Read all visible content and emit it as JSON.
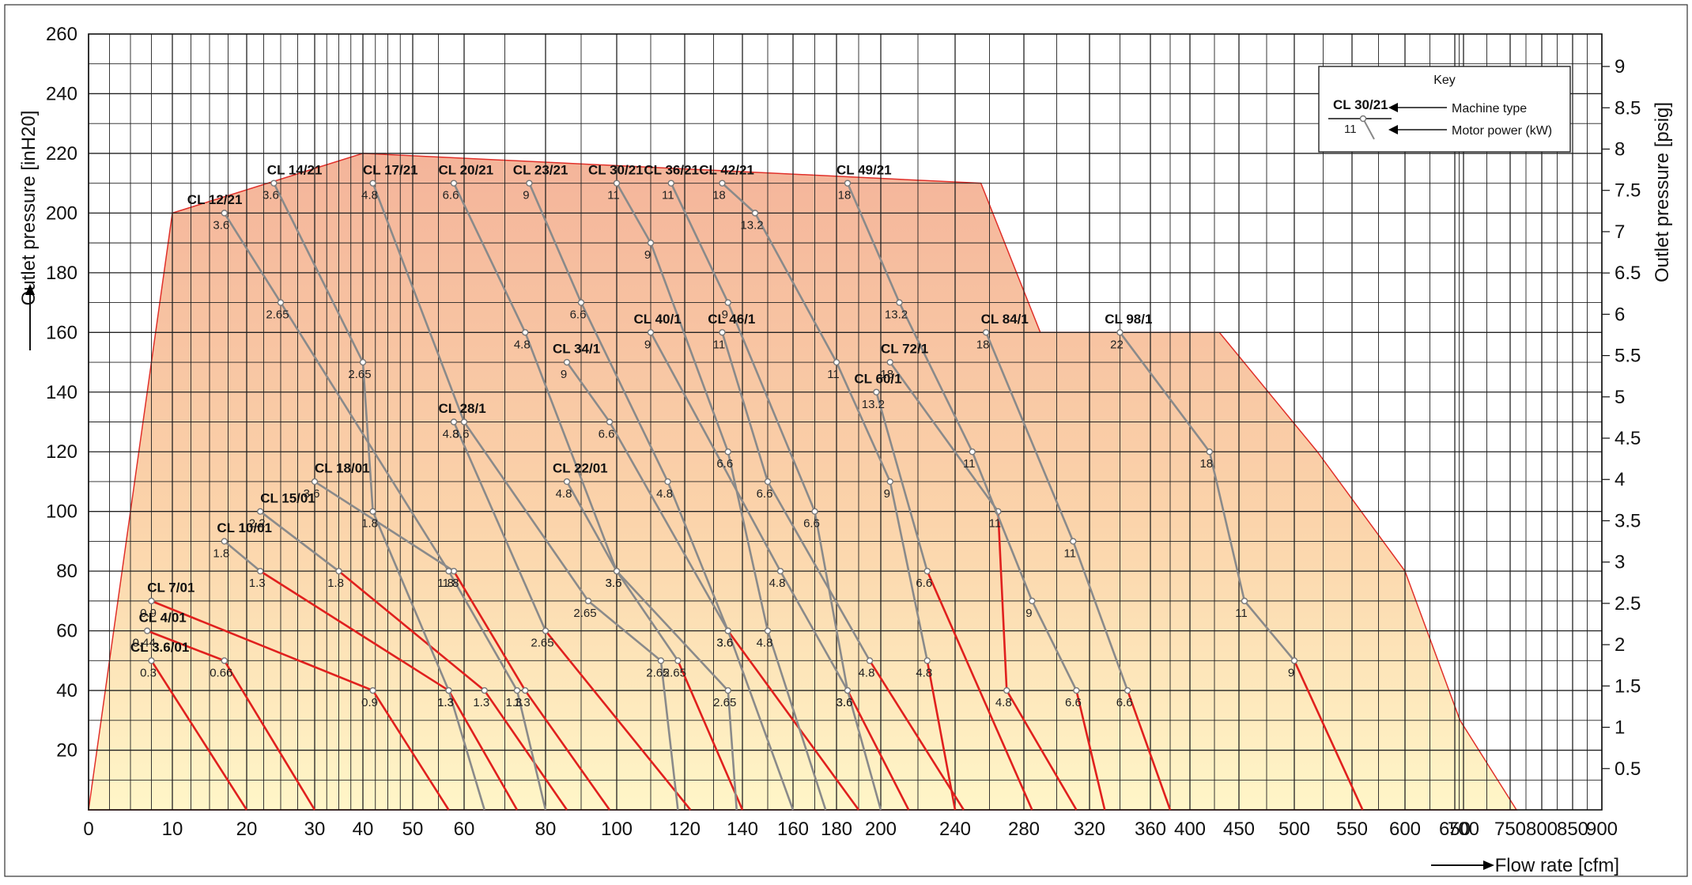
{
  "chart_data": {
    "type": "line",
    "y_left": {
      "label": "Outlet pressure   [inH20]",
      "min": 0,
      "max": 260,
      "ticks": [
        20,
        40,
        60,
        80,
        100,
        120,
        140,
        160,
        180,
        200,
        220,
        240,
        260
      ]
    },
    "y_right": {
      "label": "Outlet pressure   [psig]",
      "ticks": [
        {
          "v": 0.5,
          "t": "0.5"
        },
        {
          "v": 1,
          "t": "1"
        },
        {
          "v": 1.5,
          "t": "1.5"
        },
        {
          "v": 2,
          "t": "2"
        },
        {
          "v": 2.5,
          "t": "2.5"
        },
        {
          "v": 3,
          "t": "3"
        },
        {
          "v": 3.5,
          "t": "3.5"
        },
        {
          "v": 4,
          "t": "4"
        },
        {
          "v": 4.5,
          "t": "4.5"
        },
        {
          "v": 5,
          "t": "5"
        },
        {
          "v": 5.5,
          "t": "5.5"
        },
        {
          "v": 6,
          "t": "6"
        },
        {
          "v": 6.5,
          "t": "6.5"
        },
        {
          "v": 7,
          "t": "7"
        },
        {
          "v": 7.5,
          "t": "7.5"
        },
        {
          "v": 8,
          "t": "8"
        },
        {
          "v": 8.5,
          "t": "8.5"
        },
        {
          "v": 9,
          "t": "9"
        }
      ]
    },
    "x": {
      "label": "Flow rate [cfm]",
      "min": 0,
      "max": 900,
      "ticks": [
        {
          "v": 0,
          "t": "0"
        },
        {
          "v": 10,
          "t": "10"
        },
        {
          "v": 20,
          "t": "20"
        },
        {
          "v": 30,
          "t": "30"
        },
        {
          "v": 40,
          "t": "40"
        },
        {
          "v": 50,
          "t": "50"
        },
        {
          "v": 60,
          "t": "60"
        },
        {
          "v": 80,
          "t": "80"
        },
        {
          "v": 100,
          "t": "100"
        },
        {
          "v": 120,
          "t": "120"
        },
        {
          "v": 140,
          "t": "140"
        },
        {
          "v": 160,
          "t": "160"
        },
        {
          "v": 180,
          "t": "180"
        },
        {
          "v": 200,
          "t": "200"
        },
        {
          "v": 240,
          "t": "240"
        },
        {
          "v": 280,
          "t": "280"
        },
        {
          "v": 320,
          "t": "320"
        },
        {
          "v": 360,
          "t": "360"
        },
        {
          "v": 400,
          "t": "400"
        },
        {
          "v": 450,
          "t": "450"
        },
        {
          "v": 500,
          "t": "500"
        },
        {
          "v": 550,
          "t": "550"
        },
        {
          "v": 600,
          "t": "600"
        },
        {
          "v": 650,
          "t": "650"
        },
        {
          "v": 700,
          "t": "700"
        },
        {
          "v": 750,
          "t": "750"
        },
        {
          "v": 800,
          "t": "800"
        },
        {
          "v": 850,
          "t": "850"
        },
        {
          "v": 900,
          "t": "900"
        }
      ]
    },
    "x_grid_extra": [
      2.5,
      5,
      7.5,
      12.5,
      15,
      17.5,
      22.5,
      25,
      27.5,
      32.5,
      35,
      37.5,
      42.5,
      45,
      47.5,
      55,
      70,
      90,
      110,
      130,
      150,
      170,
      190,
      220,
      260,
      300,
      340,
      380,
      425,
      475,
      525,
      575,
      625,
      675,
      725,
      775,
      825,
      875
    ],
    "envelope": [
      {
        "x": 0,
        "y": 0
      },
      {
        "x": 10,
        "y": 200
      },
      {
        "x": 40,
        "y": 220
      },
      {
        "x": 255,
        "y": 210
      },
      {
        "x": 290,
        "y": 160
      },
      {
        "x": 430,
        "y": 160
      },
      {
        "x": 520,
        "y": 120
      },
      {
        "x": 600,
        "y": 80
      },
      {
        "x": 680,
        "y": 30
      },
      {
        "x": 760,
        "y": 0
      }
    ],
    "key": {
      "title": "Key",
      "machine_example": "CL 30/21",
      "power_example": "11",
      "machine_label": "Machine type",
      "power_label": "Motor power (kW)"
    },
    "series": [
      {
        "name": "CL 3.6/01",
        "label_at": {
          "x": 5,
          "y": 53
        },
        "points": [
          {
            "x": 7.5,
            "y": 50,
            "t": "0.3"
          },
          {
            "x": 20,
            "y": 0
          }
        ],
        "red_from": 0
      },
      {
        "name": "CL 4/01",
        "label_at": {
          "x": 6,
          "y": 63
        },
        "points": [
          {
            "x": 7,
            "y": 60,
            "t": "0.44"
          },
          {
            "x": 17,
            "y": 50,
            "t": "0.66"
          },
          {
            "x": 30,
            "y": 0
          }
        ],
        "red_from": 0
      },
      {
        "name": "CL 7/01",
        "label_at": {
          "x": 7,
          "y": 73
        },
        "points": [
          {
            "x": 7.5,
            "y": 70,
            "t": "0.9"
          },
          {
            "x": 42,
            "y": 40,
            "t": "0.9"
          },
          {
            "x": 57,
            "y": 0
          }
        ],
        "red_from": 0
      },
      {
        "name": "CL 10/01",
        "label_at": {
          "x": 16,
          "y": 93
        },
        "points": [
          {
            "x": 17,
            "y": 90,
            "t": "1.8"
          },
          {
            "x": 22,
            "y": 80,
            "t": "1.3"
          },
          {
            "x": 57,
            "y": 40,
            "t": "1.3"
          },
          {
            "x": 73,
            "y": 0
          }
        ],
        "red_from": 1
      },
      {
        "name": "CL 15/01",
        "label_at": {
          "x": 22,
          "y": 103
        },
        "points": [
          {
            "x": 22,
            "y": 100,
            "t": "2.2"
          },
          {
            "x": 35,
            "y": 80,
            "t": "1.8"
          },
          {
            "x": 65,
            "y": 40,
            "t": "1.3"
          },
          {
            "x": 86,
            "y": 0
          }
        ],
        "red_from": 1
      },
      {
        "name": "CL 18/01",
        "label_at": {
          "x": 30,
          "y": 113
        },
        "points": [
          {
            "x": 30,
            "y": 110,
            "t": "3.6"
          },
          {
            "x": 58,
            "y": 80,
            "t": "1.8"
          },
          {
            "x": 75,
            "y": 40,
            "t": "1.3"
          },
          {
            "x": 98,
            "y": 0
          }
        ],
        "red_from": 1
      },
      {
        "name": "CL 22/01",
        "label_at": {
          "x": 82,
          "y": 113
        },
        "points": [
          {
            "x": 86,
            "y": 110,
            "t": "4.8"
          },
          {
            "x": 100,
            "y": 80,
            "t": "3.6"
          },
          {
            "x": 118,
            "y": 50,
            "t": "2.65"
          },
          {
            "x": 140,
            "y": 0
          }
        ],
        "red_from": 2
      },
      {
        "name": "CL 28/1",
        "label_at": {
          "x": 55,
          "y": 133
        },
        "points": [
          {
            "x": 58,
            "y": 130,
            "t": "4.8"
          },
          {
            "x": 80,
            "y": 60,
            "t": "2.65"
          },
          {
            "x": 122,
            "y": 0
          }
        ],
        "red_from": 1
      },
      {
        "name": "CL 34/1",
        "label_at": {
          "x": 82,
          "y": 153
        },
        "points": [
          {
            "x": 86,
            "y": 150,
            "t": "9"
          },
          {
            "x": 98,
            "y": 130,
            "t": "6.6"
          },
          {
            "x": 135,
            "y": 60,
            "t": "3.6"
          },
          {
            "x": 190,
            "y": 0
          }
        ],
        "red_from": 2
      },
      {
        "name": "CL 40/1",
        "label_at": {
          "x": 105,
          "y": 163
        },
        "points": [
          {
            "x": 110,
            "y": 160,
            "t": "9"
          },
          {
            "x": 155,
            "y": 80,
            "t": "4.8"
          },
          {
            "x": 185,
            "y": 40,
            "t": "3.6"
          },
          {
            "x": 215,
            "y": 0
          }
        ],
        "red_from": 2
      },
      {
        "name": "CL 46/1",
        "label_at": {
          "x": 128,
          "y": 163
        },
        "points": [
          {
            "x": 133,
            "y": 160,
            "t": "11"
          },
          {
            "x": 150,
            "y": 110,
            "t": "6.6"
          },
          {
            "x": 195,
            "y": 50,
            "t": "4.8"
          },
          {
            "x": 245,
            "y": 0
          }
        ],
        "red_from": 2
      },
      {
        "name": "CL 60/1",
        "label_at": {
          "x": 188,
          "y": 143
        },
        "points": [
          {
            "x": 198,
            "y": 140,
            "t": "13.2"
          },
          {
            "x": 225,
            "y": 80,
            "t": "6.6"
          },
          {
            "x": 285,
            "y": 0
          }
        ],
        "red_from": 1
      },
      {
        "name": "CL 72/1",
        "label_at": {
          "x": 200,
          "y": 153
        },
        "points": [
          {
            "x": 205,
            "y": 150,
            "t": "18"
          },
          {
            "x": 265,
            "y": 100,
            "t": "11"
          },
          {
            "x": 270,
            "y": 40,
            "t": "4.8"
          },
          {
            "x": 312,
            "y": 0
          }
        ],
        "red_from": 1
      },
      {
        "name": "CL 84/1",
        "label_at": {
          "x": 255,
          "y": 163
        },
        "points": [
          {
            "x": 258,
            "y": 160,
            "t": "18"
          },
          {
            "x": 310,
            "y": 90,
            "t": "11"
          },
          {
            "x": 345,
            "y": 40,
            "t": "6.6"
          },
          {
            "x": 380,
            "y": 0
          }
        ],
        "red_from": 2
      },
      {
        "name": "CL 98/1",
        "label_at": {
          "x": 330,
          "y": 163
        },
        "points": [
          {
            "x": 340,
            "y": 160,
            "t": "22"
          },
          {
            "x": 420,
            "y": 120,
            "t": "18"
          },
          {
            "x": 455,
            "y": 70,
            "t": "11"
          },
          {
            "x": 500,
            "y": 50,
            "t": "9"
          },
          {
            "x": 560,
            "y": 0
          }
        ],
        "red_from": 3
      },
      {
        "name": "CL 12/21",
        "label_at": {
          "x": 12,
          "y": 203
        },
        "points": [
          {
            "x": 17,
            "y": 200,
            "t": "3.6"
          },
          {
            "x": 25,
            "y": 170,
            "t": "2.65"
          },
          {
            "x": 57,
            "y": 80,
            "t": "1.8"
          },
          {
            "x": 73,
            "y": 40,
            "t": "1.3"
          },
          {
            "x": 80,
            "y": 0
          }
        ],
        "red_from": 4
      },
      {
        "name": "CL 14/21",
        "label_at": {
          "x": 23,
          "y": 213
        },
        "points": [
          {
            "x": 24,
            "y": 210,
            "t": "3.6"
          },
          {
            "x": 40,
            "y": 150,
            "t": "2.65"
          },
          {
            "x": 42,
            "y": 100,
            "t": "1.8"
          },
          {
            "x": 57,
            "y": 40,
            "t": "1.3"
          },
          {
            "x": 65,
            "y": 0
          }
        ],
        "red_from": 4
      },
      {
        "name": "CL 17/21",
        "label_at": {
          "x": 40,
          "y": 213
        },
        "points": [
          {
            "x": 42,
            "y": 210,
            "t": "4.8"
          },
          {
            "x": 60,
            "y": 130,
            "t": "3.6"
          },
          {
            "x": 92,
            "y": 70,
            "t": "2.65"
          },
          {
            "x": 113,
            "y": 50,
            "t": "2.65"
          },
          {
            "x": 118,
            "y": 0
          }
        ],
        "red_from": 4
      },
      {
        "name": "CL 20/21",
        "label_at": {
          "x": 55,
          "y": 213
        },
        "points": [
          {
            "x": 58,
            "y": 210,
            "t": "6.6"
          },
          {
            "x": 75,
            "y": 160,
            "t": "4.8"
          },
          {
            "x": 100,
            "y": 80,
            "t": "3.6"
          },
          {
            "x": 135,
            "y": 40,
            "t": "2.65"
          },
          {
            "x": 138,
            "y": 0
          }
        ],
        "red_from": 4
      },
      {
        "name": "CL 23/21",
        "label_at": {
          "x": 72,
          "y": 213
        },
        "points": [
          {
            "x": 76,
            "y": 210,
            "t": "9"
          },
          {
            "x": 90,
            "y": 170,
            "t": "6.6"
          },
          {
            "x": 115,
            "y": 110,
            "t": "4.8"
          },
          {
            "x": 135,
            "y": 60,
            "t": "3.6"
          },
          {
            "x": 160,
            "y": 0
          }
        ],
        "red_from": 4
      },
      {
        "name": "CL 30/21",
        "label_at": {
          "x": 92,
          "y": 213
        },
        "points": [
          {
            "x": 100,
            "y": 210,
            "t": "11"
          },
          {
            "x": 110,
            "y": 190,
            "t": "9"
          },
          {
            "x": 135,
            "y": 120,
            "t": "6.6"
          },
          {
            "x": 150,
            "y": 60,
            "t": "4.8"
          },
          {
            "x": 175,
            "y": 0
          }
        ],
        "red_from": 4
      },
      {
        "name": "CL 36/21",
        "label_at": {
          "x": 108,
          "y": 213
        },
        "points": [
          {
            "x": 116,
            "y": 210,
            "t": "11"
          },
          {
            "x": 135,
            "y": 170,
            "t": "9"
          },
          {
            "x": 170,
            "y": 100,
            "t": "6.6"
          },
          {
            "x": 185,
            "y": 40,
            "t": "3.6"
          },
          {
            "x": 200,
            "y": 0
          }
        ],
        "red_from": 4
      },
      {
        "name": "CL 42/21",
        "label_at": {
          "x": 125,
          "y": 213
        },
        "points": [
          {
            "x": 133,
            "y": 210,
            "t": "18"
          },
          {
            "x": 145,
            "y": 200,
            "t": "13.2"
          },
          {
            "x": 180,
            "y": 150,
            "t": "11"
          },
          {
            "x": 205,
            "y": 110,
            "t": "9"
          },
          {
            "x": 225,
            "y": 50,
            "t": "4.8"
          },
          {
            "x": 240,
            "y": 0
          }
        ],
        "red_from": 4
      },
      {
        "name": "CL 49/21",
        "label_at": {
          "x": 180,
          "y": 213
        },
        "points": [
          {
            "x": 185,
            "y": 210,
            "t": "18"
          },
          {
            "x": 210,
            "y": 170,
            "t": "13.2"
          },
          {
            "x": 250,
            "y": 120,
            "t": "11"
          },
          {
            "x": 285,
            "y": 70,
            "t": "9"
          },
          {
            "x": 312,
            "y": 40,
            "t": "6.6"
          },
          {
            "x": 330,
            "y": 0
          }
        ],
        "red_from": 4
      }
    ]
  }
}
